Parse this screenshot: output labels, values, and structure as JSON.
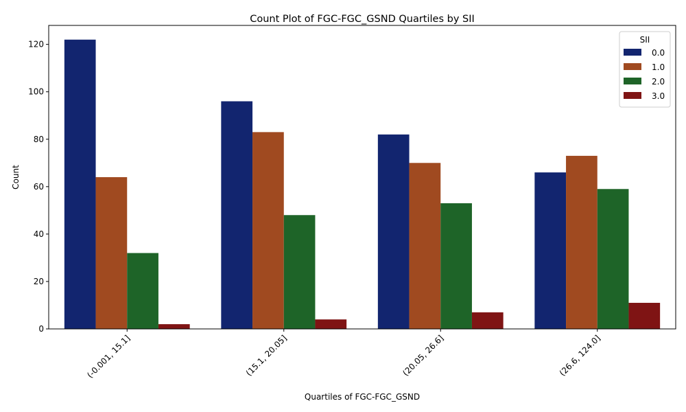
{
  "chart_data": {
    "type": "bar",
    "title": "Count Plot of FGC-FGC_GSND Quartiles by SII",
    "xlabel": "Quartiles of FGC-FGC_GSND",
    "ylabel": "Count",
    "categories": [
      "(-0.001, 15.1]",
      "(15.1, 20.05]",
      "(20.05, 26.6]",
      "(26.6, 124.0]"
    ],
    "ylim": [
      0,
      128
    ],
    "yticks": [
      0,
      20,
      40,
      60,
      80,
      100,
      120
    ],
    "grid": false,
    "legend": {
      "title": "SII",
      "placement": "top-right"
    },
    "series": [
      {
        "name": "0.0",
        "color": "#12256f",
        "values": [
          122,
          96,
          82,
          66
        ]
      },
      {
        "name": "1.0",
        "color": "#a04a20",
        "values": [
          64,
          83,
          70,
          73
        ]
      },
      {
        "name": "2.0",
        "color": "#1e6428",
        "values": [
          32,
          48,
          53,
          59
        ]
      },
      {
        "name": "3.0",
        "color": "#7f1414",
        "values": [
          2,
          4,
          7,
          11
        ]
      }
    ]
  }
}
